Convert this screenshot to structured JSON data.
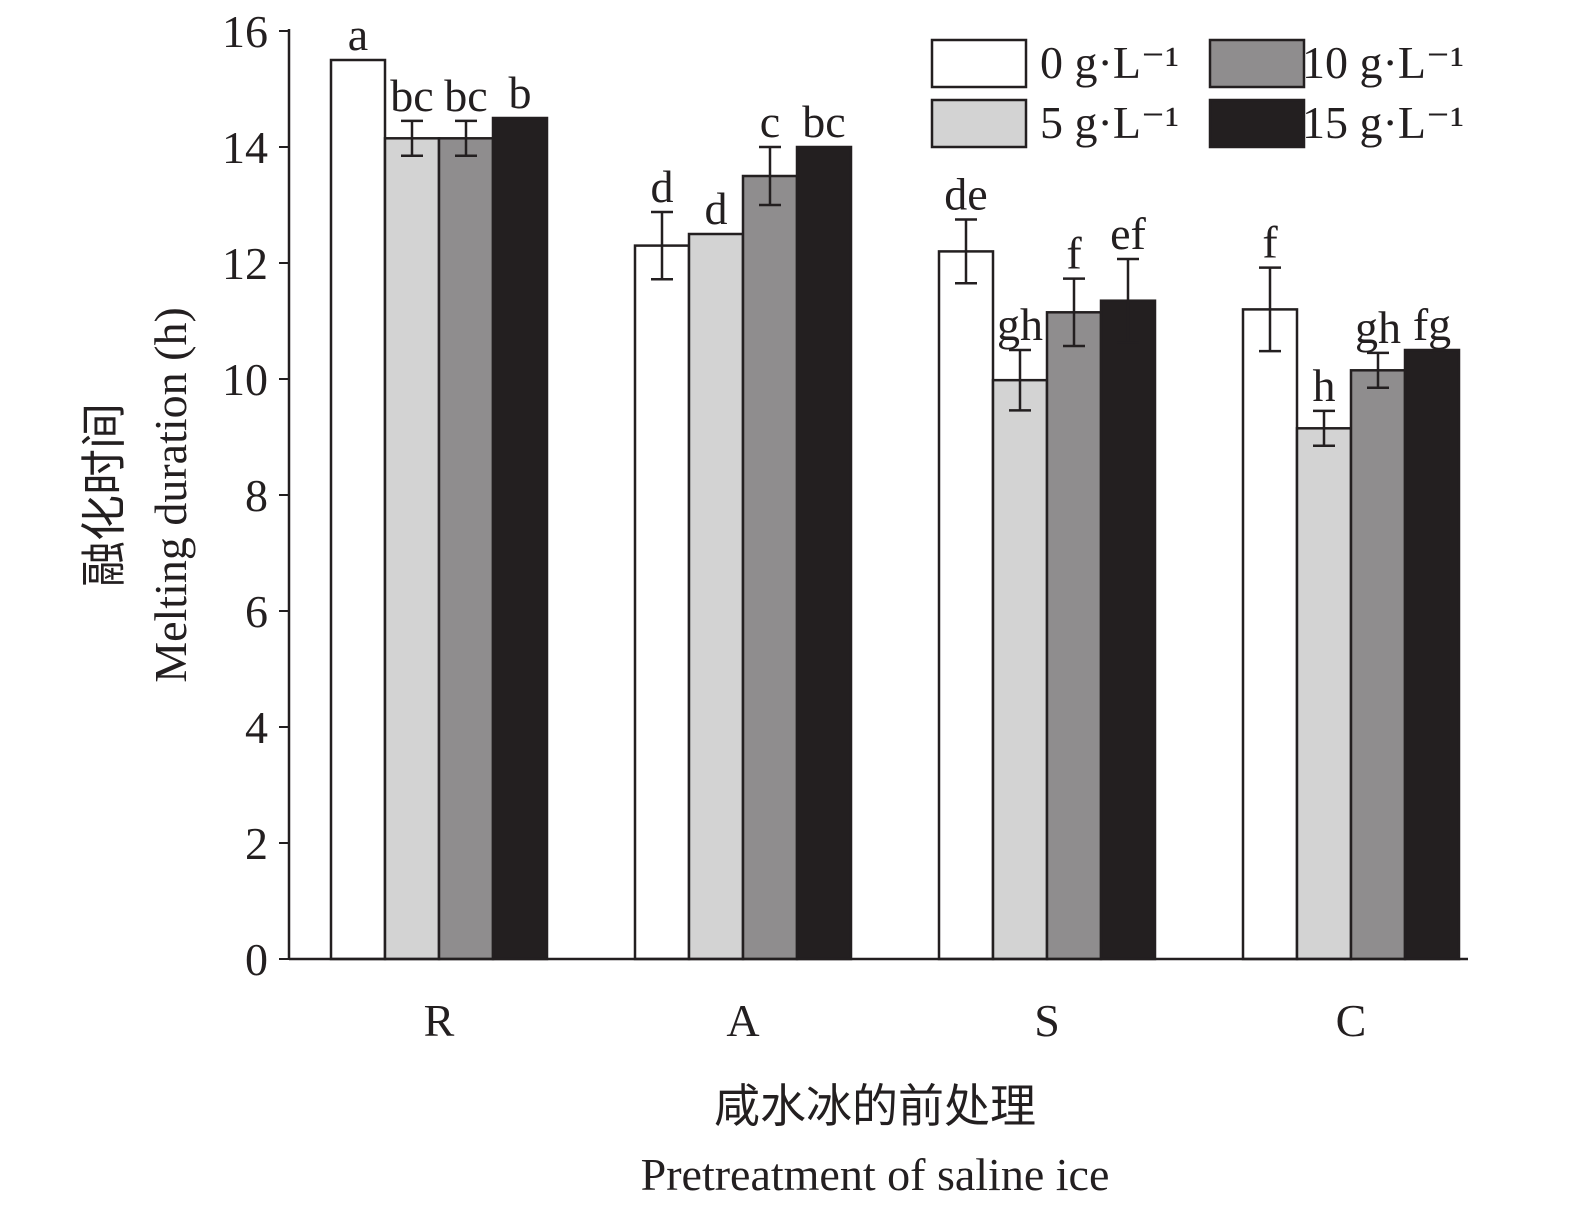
{
  "chart_data": {
    "type": "bar",
    "x_label": [
      "咸水冰的前处理",
      "Pretreatment of saline ice"
    ],
    "y_label": [
      "融化时间",
      "Melting duration (h)"
    ],
    "categories": [
      "R",
      "A",
      "S",
      "C"
    ],
    "series": [
      {
        "name": "0 g·L⁻¹",
        "color": "#ffffff",
        "values": [
          15.5,
          12.3,
          12.2,
          11.2
        ],
        "errors": [
          null,
          0.58,
          0.55,
          0.72
        ],
        "letters": [
          "a",
          "d",
          "de",
          "f"
        ]
      },
      {
        "name": "5 g·L⁻¹",
        "color": "#d3d3d3",
        "values": [
          14.15,
          12.5,
          9.98,
          9.15
        ],
        "errors": [
          0.3,
          null,
          0.52,
          0.3
        ],
        "letters": [
          "bc",
          "d",
          "gh",
          "h"
        ]
      },
      {
        "name": "10 g·L⁻¹",
        "color": "#8f8d8e",
        "values": [
          14.15,
          13.5,
          11.15,
          10.15
        ],
        "errors": [
          0.3,
          0.5,
          0.58,
          0.3
        ],
        "letters": [
          "bc",
          "c",
          "f",
          "gh"
        ]
      },
      {
        "name": "15 g·L⁻¹",
        "color": "#231f20",
        "values": [
          14.5,
          14.0,
          11.35,
          10.5
        ],
        "errors": [
          null,
          null,
          0.72,
          null
        ],
        "letters": [
          "b",
          "bc",
          "ef",
          "fg"
        ]
      }
    ],
    "ylim": [
      0,
      16
    ],
    "yticks": [
      0,
      2,
      4,
      6,
      8,
      10,
      12,
      14,
      16
    ],
    "grid": false,
    "legend": "upper right"
  }
}
